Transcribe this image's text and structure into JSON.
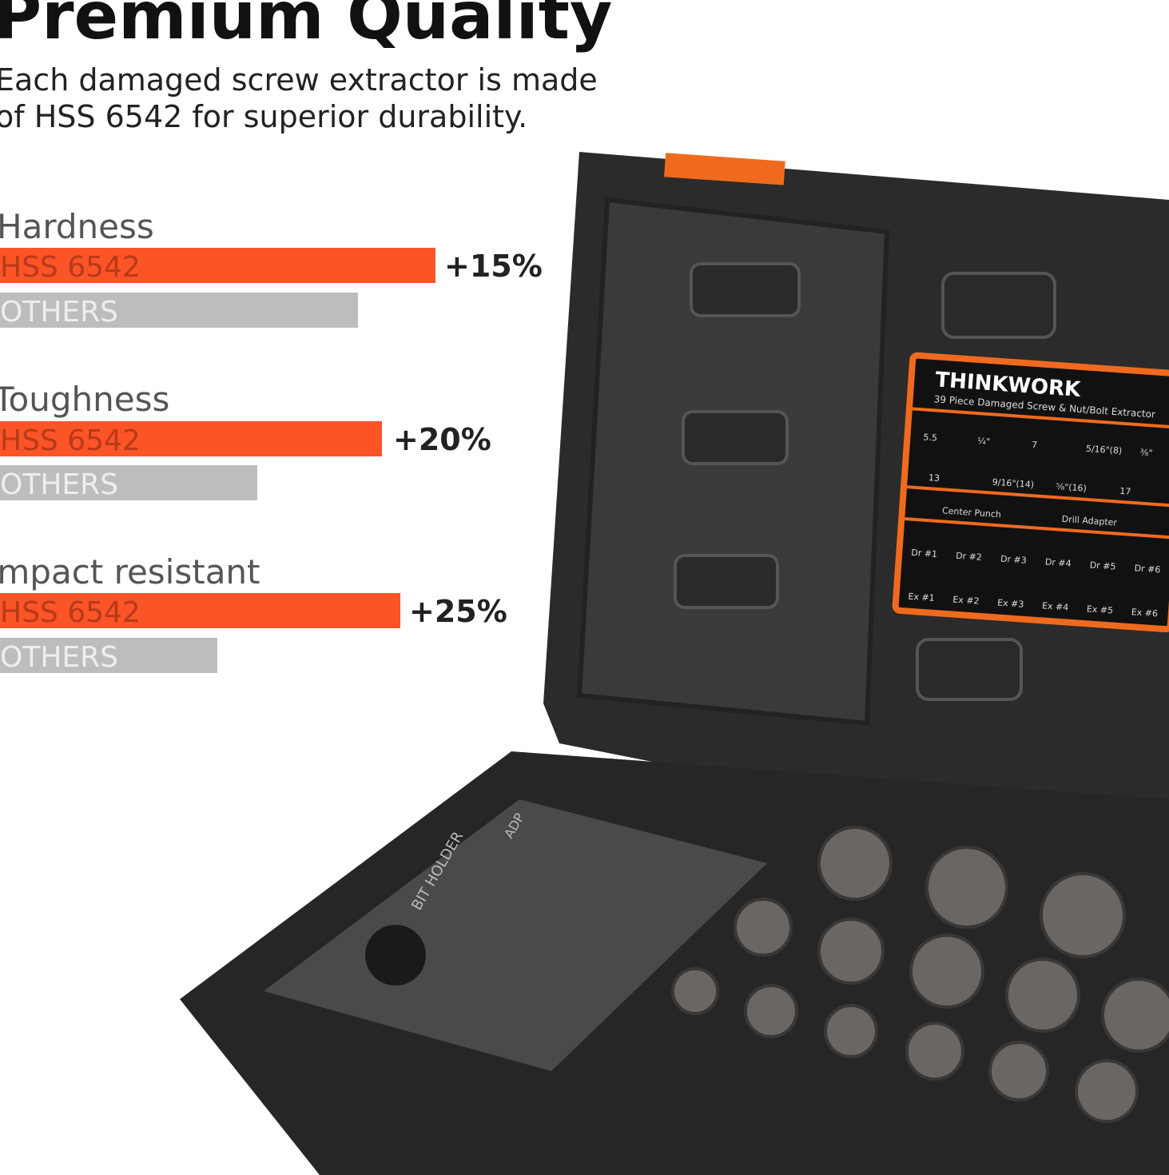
{
  "header": {
    "title": "Premium Quality",
    "subtitle_lines": [
      "Each damaged screw extractor is made",
      "of HSS 6542 for superior durability."
    ]
  },
  "comparisons": [
    {
      "label": "Hardness",
      "bars": [
        "HSS 6542",
        "OTHERS"
      ],
      "gain": "+15%"
    },
    {
      "label": "Toughness",
      "bars": [
        "HSS 6542",
        "OTHERS"
      ],
      "gain": "+20%"
    },
    {
      "label": "Impact resistant",
      "bars": [
        "HSS 6542",
        "OTHERS"
      ],
      "gain": "+25%"
    }
  ],
  "card": {
    "brand": "THINKWORK",
    "subtitle": "39 Piece Damaged Screw & Nut/Bolt Extractor",
    "sizes": [
      "5.5",
      "¼\"",
      "7",
      "5/16\"(8)",
      "⅜\"",
      "13",
      "9/16\"(14)",
      "⅝\"(16)",
      "17"
    ],
    "tools": [
      "Center Punch",
      "Drill Adapter"
    ],
    "drills": [
      "Dr #1",
      "Dr #2",
      "Dr #3",
      "Dr #4",
      "Dr #5",
      "Dr #6"
    ],
    "extractors": [
      "Ex #1",
      "Ex #2",
      "Ex #3",
      "Ex #4",
      "Ex #5",
      "Ex #6"
    ]
  },
  "tray": [
    "ADP",
    "BIT HOLDER"
  ]
}
